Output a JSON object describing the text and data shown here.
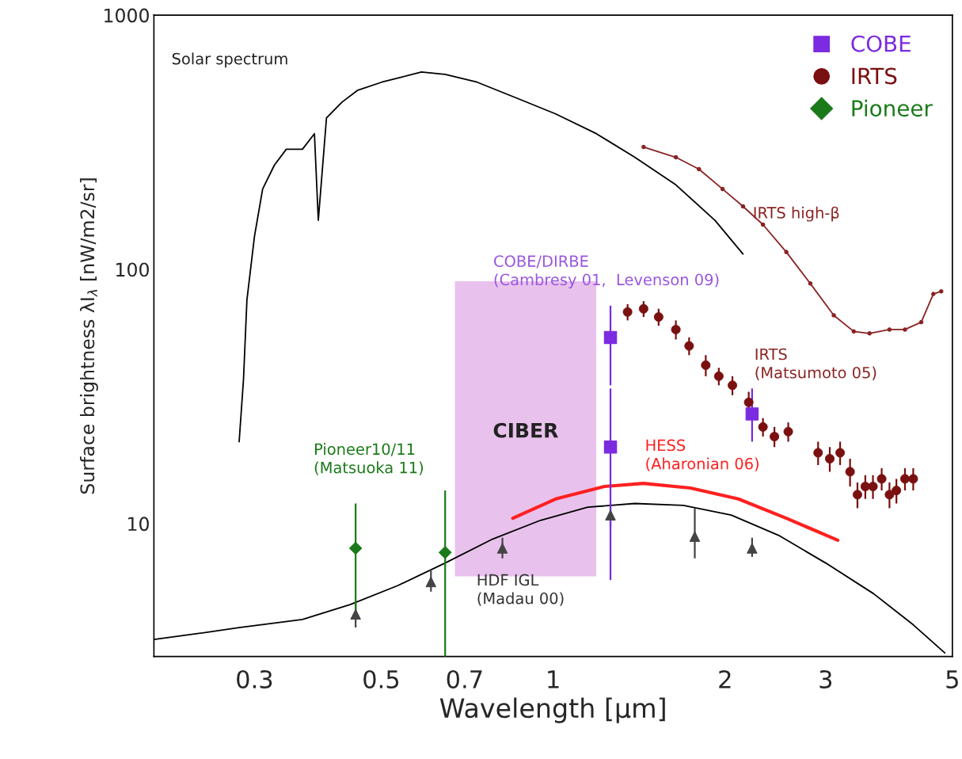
{
  "chart_data": {
    "type": "line",
    "xlabel": "Wavelength [μm]",
    "ylabel": "Surface brightness λI$_{λ}$ [nW/m2/sr]",
    "log": "xy",
    "xlim": [
      0.2,
      5
    ],
    "ylim": [
      3,
      1000
    ],
    "xticks": [
      0.3,
      0.5,
      0.7,
      1,
      2,
      3,
      5
    ],
    "yticks": [
      10,
      100,
      1000
    ],
    "grid": false,
    "legend": "top right",
    "series": [
      {
        "color": "#000000",
        "marker": "none",
        "x": [
          0.282,
          0.287,
          0.291,
          0.3,
          0.31,
          0.325,
          0.341,
          0.364,
          0.382,
          0.388,
          0.401,
          0.427,
          0.455,
          0.501,
          0.534,
          0.588,
          0.647,
          0.736,
          0.863,
          1.01,
          1.19,
          1.39,
          1.64,
          1.92,
          2.15
        ],
        "values": [
          21,
          37,
          76,
          135,
          207,
          257,
          297,
          297,
          342,
          156,
          394,
          455,
          507,
          545,
          565,
          598,
          585,
          545,
          472,
          409,
          342,
          276,
          215,
          156,
          115
        ]
      },
      {
        "color": "#8b2323",
        "marker": "circle",
        "x": [
          1.44,
          1.64,
          1.8,
          1.98,
          2.15,
          2.33,
          2.56,
          2.82,
          3.1,
          3.36,
          3.58,
          3.88,
          4.13,
          4.41,
          4.63,
          4.78
        ],
        "values": [
          303,
          276,
          248,
          207,
          177,
          150,
          117,
          88,
          66,
          57,
          56,
          58,
          58,
          62,
          80,
          82
        ]
      },
      {
        "color": "#000000",
        "marker": "none",
        "x": [
          0.2,
          0.24,
          0.282,
          0.364,
          0.441,
          0.534,
          0.647,
          0.784,
          0.95,
          1.15,
          1.39,
          1.69,
          2.05,
          2.48,
          3.0,
          3.64,
          4.27,
          4.85
        ],
        "values": [
          3.5,
          3.7,
          3.9,
          4.2,
          4.8,
          5.7,
          7.0,
          8.7,
          10.3,
          11.6,
          12,
          11.8,
          10.8,
          9,
          7,
          5.3,
          4,
          3.1
        ]
      },
      {
        "color": "#ff2020",
        "marker": "none",
        "x": [
          0.85,
          1.01,
          1.23,
          1.44,
          1.74,
          2.11,
          2.56,
          3.15
        ],
        "values": [
          10.5,
          12.5,
          14,
          14.4,
          13.8,
          12.5,
          10.5,
          8.6
        ]
      },
      {
        "type": "scatter",
        "color": "#444444",
        "marker": "triangle",
        "x": [
          0.451,
          0.611,
          0.815,
          1.26,
          1.77,
          2.23
        ],
        "values": [
          4.4,
          5.9,
          8,
          10.8,
          8.9,
          8
        ],
        "errors": [
          [
            3.9,
            4.9
          ],
          [
            5.4,
            6.6
          ],
          [
            7.3,
            8.8
          ],
          [
            9.8,
            12
          ],
          [
            7.3,
            11.5
          ],
          [
            7.4,
            8.8
          ]
        ]
      },
      {
        "type": "scatter",
        "name": "COBE",
        "color": "#7b2be0",
        "marker": "square",
        "x": [
          1.26,
          1.26,
          2.23
        ],
        "values": [
          54,
          20,
          27
        ],
        "errors": [
          [
            35,
            72
          ],
          [
            6,
            34
          ],
          [
            21,
            34
          ]
        ]
      },
      {
        "type": "scatter",
        "name": "IRTS",
        "color": "#7a1010",
        "marker": "circle",
        "x": [
          1.35,
          1.44,
          1.53,
          1.64,
          1.73,
          1.85,
          1.95,
          2.06,
          2.2,
          2.33,
          2.44,
          2.58,
          2.91,
          3.05,
          3.18,
          3.31,
          3.41,
          3.52,
          3.63,
          3.76,
          3.88,
          3.99,
          4.13,
          4.27
        ],
        "values": [
          68,
          70,
          65,
          58,
          50,
          42,
          38,
          35,
          30,
          24,
          22,
          23,
          19,
          18,
          19,
          16,
          13,
          14,
          14,
          15,
          13,
          13.5,
          15,
          15
        ],
        "errors": [
          5,
          5,
          5,
          5,
          4,
          4,
          3,
          3,
          3,
          2,
          2,
          2,
          2,
          2,
          2,
          2,
          1.5,
          1.5,
          1.5,
          1.5,
          1.5,
          1.5,
          1.5,
          1.5
        ]
      },
      {
        "type": "scatter",
        "name": "Pioneer",
        "color": "#1a7a1a",
        "marker": "diamond",
        "x": [
          0.451,
          0.647
        ],
        "values": [
          8,
          7.7
        ],
        "errors": [
          [
            4.2,
            12
          ],
          [
            3,
            13.5
          ]
        ]
      }
    ],
    "bands": [
      {
        "axis": "x",
        "from": 0.673,
        "to": 1.19,
        "label": "CIBER",
        "color": "#e8c2ec"
      }
    ],
    "annotations": [
      "Solar spectrum",
      "IRTS high-β",
      "COBE/DIRBE\n(Cambresy 01,  Levenson 09)",
      "IRTS\n(Matsumoto 05)",
      "Pioneer10/11\n(Matsuoka 11)",
      "HESS\n(Aharonian 06)",
      "HDF IGL\n(Madau 00)"
    ]
  }
}
